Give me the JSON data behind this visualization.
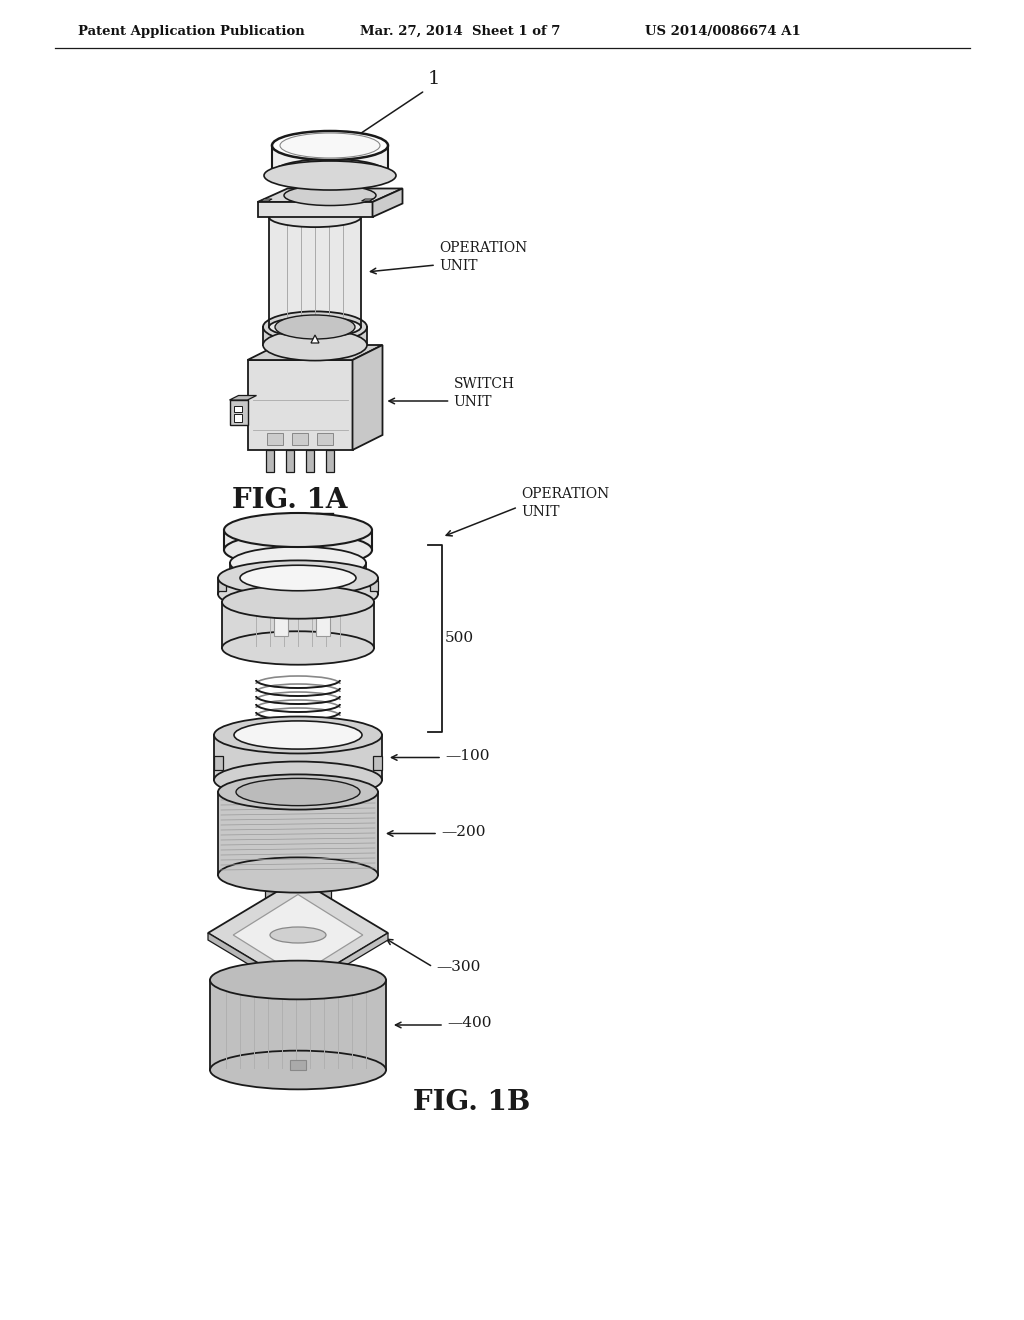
{
  "title_left": "Patent Application Publication",
  "title_mid": "Mar. 27, 2014  Sheet 1 of 7",
  "title_right": "US 2014/0086674 A1",
  "fig1a_label": "FIG. 1A",
  "fig1b_label": "FIG. 1B",
  "label_1": "1",
  "label_operation_unit": "OPERATION\nUNIT",
  "label_switch_unit": "SWITCH\nUNIT",
  "label_100": "—100",
  "label_200": "—200",
  "label_300": "—300",
  "label_400": "—400",
  "label_500": "500",
  "label_operation_unit_b": "OPERATION\nUNIT",
  "bg_color": "#ffffff",
  "lc": "#1a1a1a"
}
